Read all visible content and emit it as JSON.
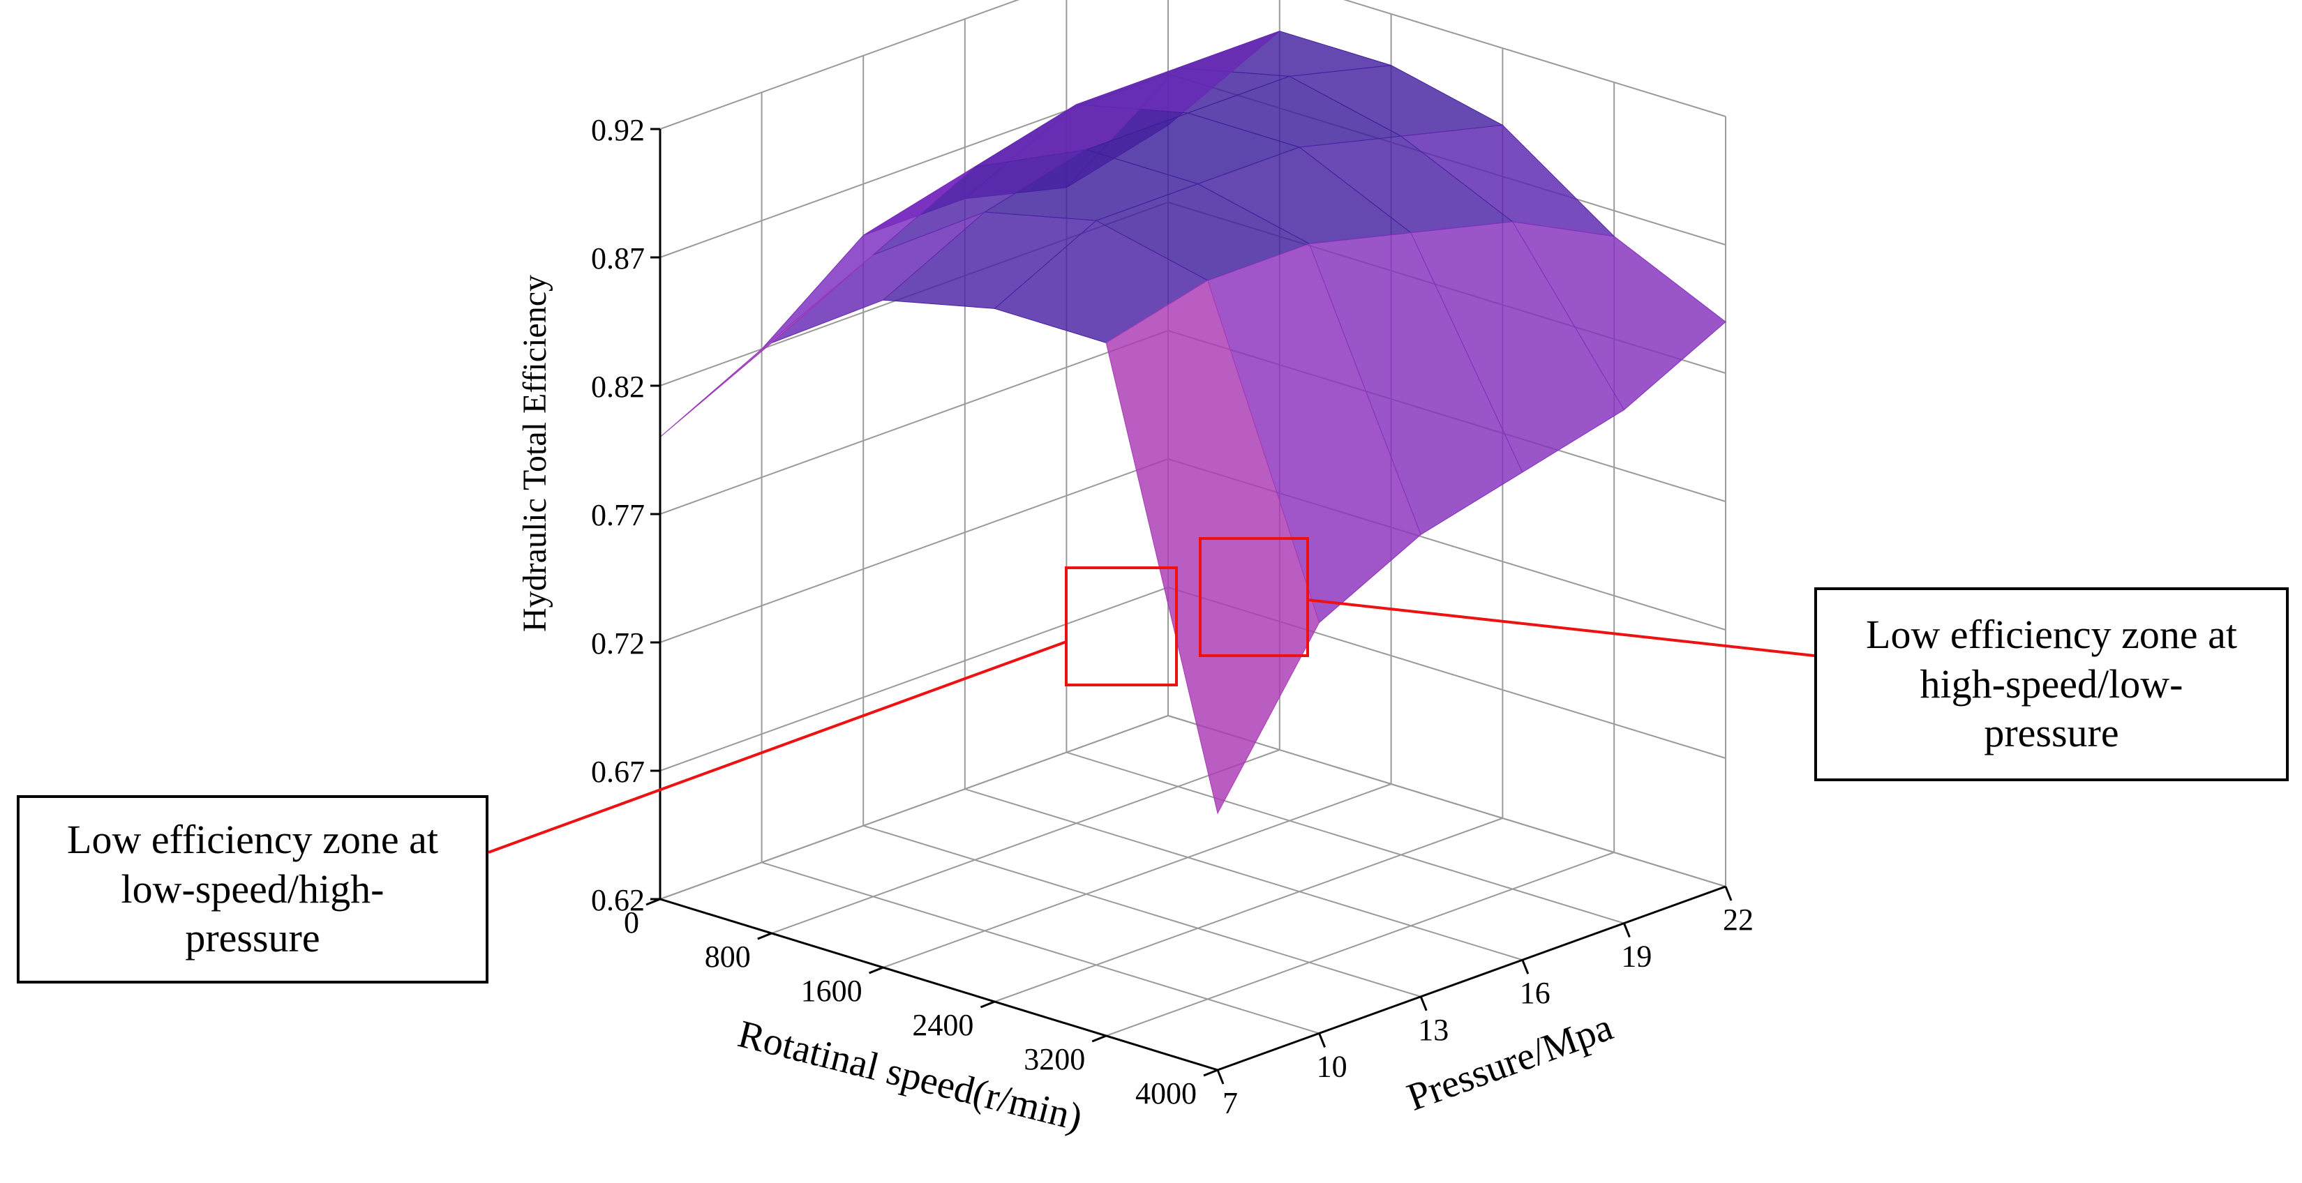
{
  "chart_data": {
    "type": "surface",
    "zlabel": "Hydraulic Total Efficiency",
    "xlabel": "Rotatinal speed(r/min)",
    "ylabel": "Pressure/Mpa",
    "x_ticks": [
      "0",
      "800",
      "1600",
      "2400",
      "3200",
      "4000"
    ],
    "y_ticks": [
      "7",
      "10",
      "13",
      "16",
      "19",
      "22"
    ],
    "z_ticks": [
      "0.62",
      "0.67",
      "0.72",
      "0.77",
      "0.82",
      "0.87",
      "0.92"
    ],
    "xlim": [
      0,
      4000
    ],
    "ylim": [
      7,
      22
    ],
    "zlim": [
      0.62,
      0.92
    ],
    "grid": true,
    "colormap": [
      "#3a1e9a",
      "#7a2cc0",
      "#c23fae",
      "#ee6c7c",
      "#f7b24b"
    ],
    "surface": {
      "speed": [
        0,
        800,
        1600,
        2400,
        3200,
        4000
      ],
      "pressure": [
        7,
        10,
        13,
        16,
        19,
        22
      ],
      "efficiency": [
        [
          0.8,
          0.82,
          0.85,
          0.85,
          0.84,
          0.85
        ],
        [
          0.85,
          0.87,
          0.89,
          0.9,
          0.9,
          0.9
        ],
        [
          0.88,
          0.9,
          0.91,
          0.91,
          0.91,
          0.9
        ],
        [
          0.89,
          0.91,
          0.91,
          0.91,
          0.9,
          0.89
        ],
        [
          0.89,
          0.9,
          0.9,
          0.89,
          0.88,
          0.86
        ],
        [
          0.72,
          0.78,
          0.8,
          0.81,
          0.82,
          0.84
        ]
      ]
    },
    "annotations": [
      {
        "text": "Low efficiency zone at low-speed/high-pressure",
        "lines": [
          "Low efficiency zone at",
          "low-speed/high-",
          "pressure"
        ]
      },
      {
        "text": "Low efficiency zone at high-speed/low-pressure",
        "lines": [
          "Low efficiency zone at",
          "high-speed/low-",
          "pressure"
        ]
      }
    ],
    "annotation_color": "#ee1111"
  }
}
